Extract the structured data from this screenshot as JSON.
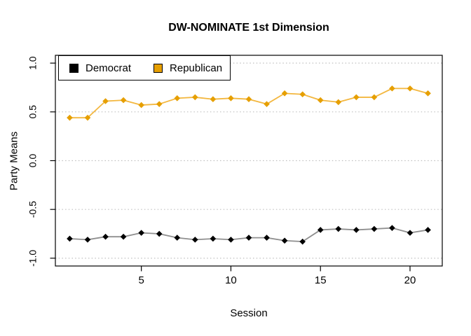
{
  "title": "DW-NOMINATE 1st Dimension",
  "legend": {
    "items": [
      {
        "label": "Democrat",
        "color": "#000000"
      },
      {
        "label": "Republican",
        "color": "#E69F00"
      }
    ]
  },
  "chart_data": {
    "type": "line",
    "title": "DW-NOMINATE 1st Dimension",
    "xlabel": "Session",
    "ylabel": "Party Means",
    "x": [
      1,
      2,
      3,
      4,
      5,
      6,
      7,
      8,
      9,
      10,
      11,
      12,
      13,
      14,
      15,
      16,
      17,
      18,
      19,
      20,
      21
    ],
    "series": [
      {
        "name": "Democrat",
        "marker_color": "#000000",
        "line_color": "#8F8F8F",
        "values": [
          -0.8,
          -0.81,
          -0.78,
          -0.78,
          -0.74,
          -0.75,
          -0.79,
          -0.81,
          -0.8,
          -0.81,
          -0.79,
          -0.79,
          -0.82,
          -0.83,
          -0.71,
          -0.7,
          -0.71,
          -0.7,
          -0.69,
          -0.74,
          -0.71
        ]
      },
      {
        "name": "Republican",
        "marker_color": "#E69F00",
        "line_color": "#F3B73F",
        "values": [
          0.44,
          0.44,
          0.61,
          0.62,
          0.57,
          0.58,
          0.64,
          0.65,
          0.63,
          0.64,
          0.63,
          0.58,
          0.69,
          0.68,
          0.62,
          0.6,
          0.65,
          0.65,
          0.74,
          0.74,
          0.69
        ]
      }
    ],
    "xlim": [
      0.2,
      21.8
    ],
    "ylim": [
      -1.08,
      1.08
    ],
    "xticks": [
      5,
      10,
      15,
      20
    ],
    "xtick_labels": [
      "5",
      "10",
      "15",
      "20"
    ],
    "yticks": [
      1.0,
      0.5,
      0.0,
      -0.5,
      -1.0
    ],
    "ytick_labels": [
      "1.0",
      "0.5",
      "0.0",
      "-0.5",
      "-1.0"
    ],
    "grid": "dotted horizontal gridlines at y ticks",
    "grid_color": "#BFBFBF",
    "legend_position": "top-left inside plot",
    "marker": "diamond"
  }
}
